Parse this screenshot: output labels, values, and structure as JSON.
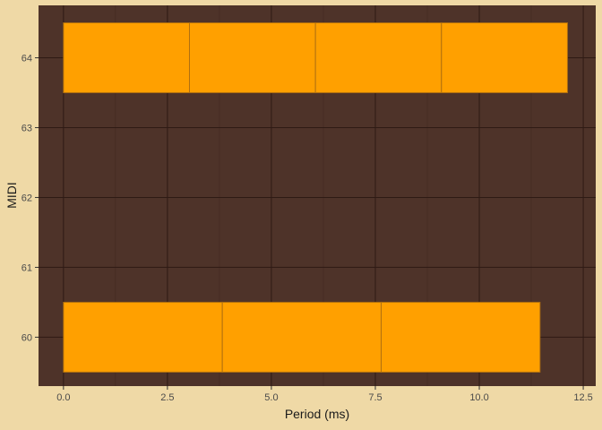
{
  "chart_data": {
    "type": "bar",
    "orientation": "horizontal",
    "xlabel": "Period (ms)",
    "ylabel": "MIDI",
    "xlim": [
      -0.6,
      12.8
    ],
    "ylim": [
      59.3,
      64.75
    ],
    "x_ticks": [
      0.0,
      2.5,
      5.0,
      7.5,
      10.0,
      12.5
    ],
    "x_tick_labels": [
      "0.0",
      "2.5",
      "5.0",
      "7.5",
      "10.0",
      "12.5"
    ],
    "y_ticks": [
      60,
      61,
      62,
      63,
      64
    ],
    "y_tick_labels": [
      "60",
      "61",
      "62",
      "63",
      "64"
    ],
    "grid": true,
    "bar_height": 1.0,
    "colors": {
      "background": "#EFD9A6",
      "panel": "#4E3329",
      "grid": "#2E1A14",
      "bar_fill": "#FFA000",
      "bar_border": "#B07010"
    },
    "rows": [
      {
        "midi": 64,
        "segments": [
          [
            0.0,
            3.03
          ],
          [
            3.03,
            6.06
          ],
          [
            6.06,
            9.09
          ],
          [
            9.09,
            12.12
          ]
        ]
      },
      {
        "midi": 60,
        "segments": [
          [
            0.0,
            3.82
          ],
          [
            3.82,
            7.64
          ],
          [
            7.64,
            11.46
          ]
        ]
      }
    ]
  }
}
